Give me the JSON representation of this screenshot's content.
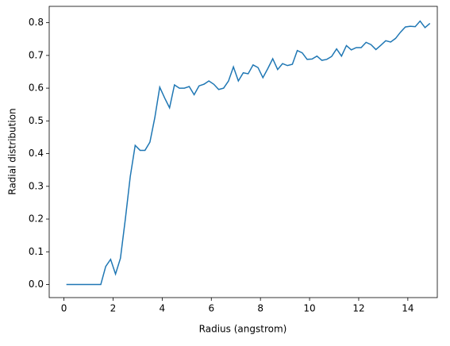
{
  "chart_data": {
    "type": "line",
    "xlabel": "Radius (angstrom)",
    "ylabel": "Radial distribution",
    "color": "#1f77b4",
    "x": [
      0.1,
      0.3,
      0.5,
      0.7,
      0.9,
      1.1,
      1.3,
      1.5,
      1.7,
      1.9,
      2.1,
      2.3,
      2.5,
      2.7,
      2.9,
      3.1,
      3.3,
      3.5,
      3.7,
      3.9,
      4.1,
      4.3,
      4.5,
      4.7,
      4.9,
      5.1,
      5.3,
      5.5,
      5.7,
      5.9,
      6.1,
      6.3,
      6.5,
      6.7,
      6.9,
      7.1,
      7.3,
      7.5,
      7.7,
      7.9,
      8.1,
      8.3,
      8.5,
      8.7,
      8.9,
      9.1,
      9.3,
      9.5,
      9.7,
      9.9,
      10.1,
      10.3,
      10.5,
      10.7,
      10.9,
      11.1,
      11.3,
      11.5,
      11.7,
      11.9,
      12.1,
      12.3,
      12.5,
      12.7,
      12.9,
      13.1,
      13.3,
      13.5,
      13.7,
      13.9,
      14.1,
      14.3,
      14.5,
      14.7,
      14.9
    ],
    "y": [
      0,
      0,
      0,
      0,
      0,
      0,
      0,
      0,
      0.055,
      0.077,
      0.032,
      0.08,
      0.2,
      0.33,
      0.425,
      0.41,
      0.41,
      0.435,
      0.51,
      0.603,
      0.57,
      0.54,
      0.61,
      0.6,
      0.6,
      0.605,
      0.58,
      0.607,
      0.612,
      0.622,
      0.612,
      0.596,
      0.6,
      0.622,
      0.665,
      0.622,
      0.647,
      0.644,
      0.671,
      0.663,
      0.632,
      0.66,
      0.69,
      0.657,
      0.675,
      0.669,
      0.673,
      0.715,
      0.708,
      0.688,
      0.689,
      0.698,
      0.685,
      0.688,
      0.697,
      0.72,
      0.698,
      0.73,
      0.717,
      0.724,
      0.724,
      0.74,
      0.733,
      0.718,
      0.731,
      0.745,
      0.741,
      0.752,
      0.771,
      0.787,
      0.789,
      0.788,
      0.805,
      0.785,
      0.798
    ],
    "xlim": [
      -0.6,
      15.2
    ],
    "ylim": [
      -0.04,
      0.85
    ],
    "xticks": [
      0,
      2,
      4,
      6,
      8,
      10,
      12,
      14
    ],
    "yticks": [
      {
        "value": 0,
        "label": "0.0"
      },
      0.1,
      0.2,
      0.3,
      0.4,
      0.5,
      0.6,
      0.7,
      0.8
    ]
  }
}
